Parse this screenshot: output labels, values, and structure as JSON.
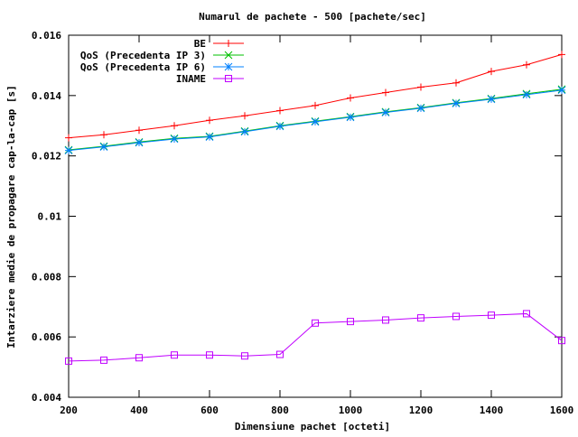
{
  "chart_data": {
    "type": "line",
    "title": "Numarul de pachete - 500 [pachete/sec]",
    "xlabel": "Dimensiune pachet [octeti]",
    "ylabel": "Intarziere medie de propagare cap-la-cap [s]",
    "xlim": [
      200,
      1600
    ],
    "ylim": [
      0.004,
      0.016
    ],
    "x_ticks": [
      200,
      400,
      600,
      800,
      1000,
      1200,
      1400,
      1600
    ],
    "y_ticks": [
      0.004,
      0.006,
      0.008,
      0.01,
      0.012,
      0.014,
      0.016
    ],
    "y_tick_labels": [
      "0.004",
      "0.006",
      "0.008",
      "0.01",
      "0.012",
      "0.014",
      "0.016"
    ],
    "x_tick_labels": [
      "200",
      "400",
      "600",
      "800",
      "1000",
      "1200",
      "1400",
      "1600"
    ],
    "grid": false,
    "legend_position": "top-right",
    "x": [
      200,
      300,
      400,
      500,
      600,
      700,
      800,
      900,
      1000,
      1100,
      1200,
      1300,
      1400,
      1500,
      1600
    ],
    "series": [
      {
        "name": "BE",
        "color": "#ff0000",
        "marker": "plus",
        "values": [
          0.0126,
          0.0127,
          0.01285,
          0.013,
          0.01318,
          0.01333,
          0.0135,
          0.01367,
          0.01392,
          0.0141,
          0.01428,
          0.01442,
          0.0148,
          0.01502,
          0.01536
        ]
      },
      {
        "name": "QoS (Precedenta IP 3)",
        "color": "#00c000",
        "marker": "cross",
        "values": [
          0.0122,
          0.01232,
          0.01246,
          0.01258,
          0.01265,
          0.01282,
          0.013,
          0.01315,
          0.0133,
          0.01346,
          0.0136,
          0.01376,
          0.0139,
          0.01406,
          0.01421
        ]
      },
      {
        "name": "QoS (Precedenta IP 6)",
        "color": "#0080ff",
        "marker": "star",
        "values": [
          0.01218,
          0.0123,
          0.01244,
          0.01256,
          0.01263,
          0.0128,
          0.01298,
          0.01313,
          0.01328,
          0.01344,
          0.01358,
          0.01374,
          0.01388,
          0.01403,
          0.01418
        ]
      },
      {
        "name": "INAME",
        "color": "#c000ff",
        "marker": "square",
        "values": [
          0.0052,
          0.00523,
          0.00531,
          0.0054,
          0.0054,
          0.00537,
          0.00542,
          0.00646,
          0.00651,
          0.00656,
          0.00663,
          0.00668,
          0.00672,
          0.00677,
          0.00588
        ]
      }
    ]
  }
}
